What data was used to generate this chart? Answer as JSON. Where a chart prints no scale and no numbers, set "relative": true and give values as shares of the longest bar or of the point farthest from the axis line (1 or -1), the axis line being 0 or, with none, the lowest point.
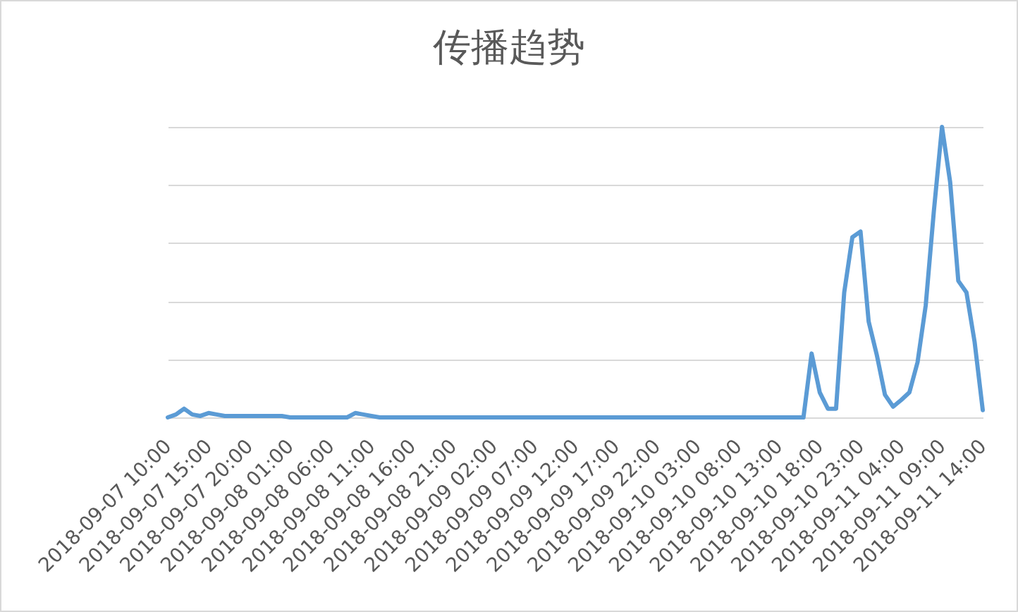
{
  "chart_data": {
    "type": "line",
    "title": "传播趋势",
    "categories": [
      "2018-09-07 10:00",
      null,
      null,
      null,
      null,
      "2018-09-07 15:00",
      null,
      null,
      null,
      null,
      "2018-09-07 20:00",
      null,
      null,
      null,
      null,
      "2018-09-08 01:00",
      null,
      null,
      null,
      null,
      "2018-09-08 06:00",
      null,
      null,
      null,
      null,
      "2018-09-08 11:00",
      null,
      null,
      null,
      null,
      "2018-09-08 16:00",
      null,
      null,
      null,
      null,
      "2018-09-08 21:00",
      null,
      null,
      null,
      null,
      "2018-09-09 02:00",
      null,
      null,
      null,
      null,
      "2018-09-09 07:00",
      null,
      null,
      null,
      null,
      "2018-09-09 12:00",
      null,
      null,
      null,
      null,
      "2018-09-09 17:00",
      null,
      null,
      null,
      null,
      "2018-09-09 22:00",
      null,
      null,
      null,
      null,
      "2018-09-10 03:00",
      null,
      null,
      null,
      null,
      "2018-09-10 08:00",
      null,
      null,
      null,
      null,
      "2018-09-10 13:00",
      null,
      null,
      null,
      null,
      "2018-09-10 18:00",
      null,
      null,
      null,
      null,
      "2018-09-10 23:00",
      null,
      null,
      null,
      null,
      "2018-09-11 04:00",
      null,
      null,
      null,
      null,
      "2018-09-11 09:00",
      null,
      null,
      null,
      null,
      "2018-09-11 14:00"
    ],
    "values": [
      0,
      0.01,
      0.03,
      0.01,
      0.005,
      0.015,
      0.01,
      0.005,
      0.005,
      0.005,
      0.005,
      0.005,
      0.005,
      0.005,
      0.005,
      0,
      0,
      0,
      0,
      0,
      0,
      0,
      0,
      0.015,
      0.01,
      0.005,
      0,
      0,
      0,
      0,
      0,
      0,
      0,
      0,
      0,
      0,
      0,
      0,
      0,
      0,
      0,
      0,
      0,
      0,
      0,
      0,
      0,
      0,
      0,
      0,
      0,
      0,
      0,
      0,
      0,
      0,
      0,
      0,
      0,
      0,
      0,
      0,
      0,
      0,
      0,
      0,
      0,
      0,
      0,
      0,
      0,
      0,
      0,
      0,
      0,
      0,
      0,
      0,
      0,
      0.22,
      0.086,
      0.03,
      0.03,
      0.43,
      0.62,
      0.64,
      0.33,
      0.215,
      0.078,
      0.037,
      0.06,
      0.086,
      0.19,
      0.385,
      0.71,
      1,
      0.81,
      0.47,
      0.43,
      0.26,
      0.025
    ],
    "color": "#5b9bd5",
    "relative": true,
    "grid": "y"
  }
}
